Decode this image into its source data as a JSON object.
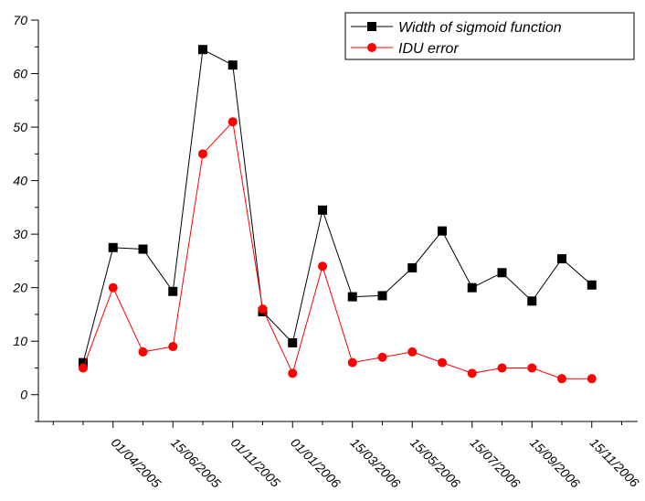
{
  "chart_data": {
    "type": "line",
    "x": [
      "",
      "01/04/2005",
      "",
      "15/06/2005",
      "",
      "01/11/2005",
      "",
      "01/01/2006",
      "",
      "15/03/2006",
      "",
      "15/05/2006",
      "",
      "15/07/2006",
      "",
      "15/09/2006",
      "",
      "15/11/2006"
    ],
    "x_tick_labels": [
      "01/04/2005",
      "15/06/2005",
      "01/11/2005",
      "01/01/2006",
      "15/03/2006",
      "15/05/2006",
      "15/07/2006",
      "15/09/2006",
      "15/11/2006"
    ],
    "ylim": [
      -5,
      70
    ],
    "y_ticks": [
      0,
      10,
      20,
      30,
      40,
      50,
      60,
      70
    ],
    "grid": false,
    "legend_position": "top-right",
    "series": [
      {
        "name": "Width of sigmoid function",
        "color": "#000000",
        "marker": "square",
        "values": [
          6,
          27.5,
          27.2,
          19.3,
          64.5,
          61.6,
          15.5,
          9.7,
          34.5,
          18.3,
          18.5,
          23.7,
          30.6,
          20,
          22.8,
          17.5,
          25.4,
          20.5
        ]
      },
      {
        "name": "IDU error",
        "color": "#ff0000",
        "marker": "circle",
        "values": [
          5,
          20,
          8,
          9,
          45,
          51,
          16,
          4,
          24,
          6,
          7,
          8,
          6,
          4,
          5,
          5,
          3,
          3
        ]
      }
    ]
  }
}
